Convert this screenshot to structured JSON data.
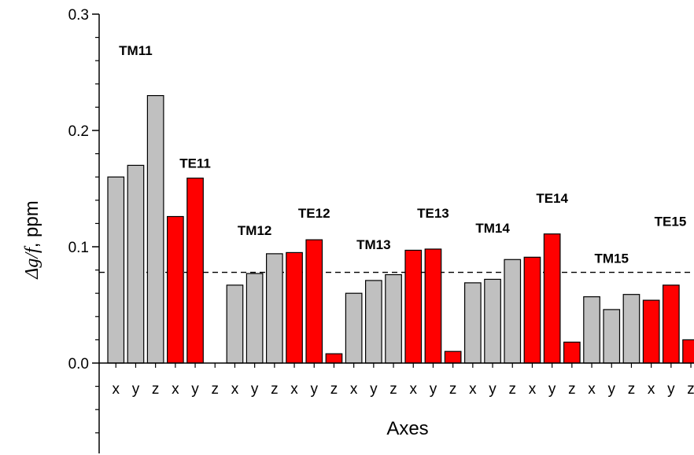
{
  "chart_data": {
    "type": "bar",
    "title": "",
    "xlabel": "Axes",
    "ylabel_main": "Δg/f",
    "ylabel_unit": ", ppm",
    "ylim": [
      -0.08,
      0.3
    ],
    "yticks": [
      "0.0",
      "0.1",
      "0.2",
      "0.3"
    ],
    "ytick_values": [
      0.0,
      0.1,
      0.2,
      0.3
    ],
    "reference_line": 0.078,
    "colors": {
      "TM": "#c0c0c0",
      "TE": "#ff0000",
      "reference": "#000000"
    },
    "groups": [
      {
        "label": "TM11",
        "mode": "TM",
        "categories": [
          "x",
          "y",
          "z"
        ],
        "values": [
          0.16,
          0.17,
          0.23
        ],
        "label_y": 0.265
      },
      {
        "label": "TE11",
        "mode": "TE",
        "categories": [
          "x",
          "y",
          "z"
        ],
        "values": [
          0.126,
          0.159,
          0.0
        ],
        "label_y": 0.168
      },
      {
        "label": "TM12",
        "mode": "TM",
        "categories": [
          "x",
          "y",
          "z"
        ],
        "values": [
          0.067,
          0.077,
          0.094
        ],
        "label_y": 0.11
      },
      {
        "label": "TE12",
        "mode": "TE",
        "categories": [
          "x",
          "y",
          "z"
        ],
        "values": [
          0.095,
          0.106,
          0.008
        ],
        "label_y": 0.125
      },
      {
        "label": "TM13",
        "mode": "TM",
        "categories": [
          "x",
          "y",
          "z"
        ],
        "values": [
          0.06,
          0.071,
          0.076
        ],
        "label_y": 0.098
      },
      {
        "label": "TE13",
        "mode": "TE",
        "categories": [
          "x",
          "y",
          "z"
        ],
        "values": [
          0.097,
          0.098,
          0.01
        ],
        "label_y": 0.125
      },
      {
        "label": "TM14",
        "mode": "TM",
        "categories": [
          "x",
          "y",
          "z"
        ],
        "values": [
          0.069,
          0.072,
          0.089
        ],
        "label_y": 0.112
      },
      {
        "label": "TE14",
        "mode": "TE",
        "categories": [
          "x",
          "y",
          "z"
        ],
        "values": [
          0.091,
          0.111,
          0.018
        ],
        "label_y": 0.138
      },
      {
        "label": "TM15",
        "mode": "TM",
        "categories": [
          "x",
          "y",
          "z"
        ],
        "values": [
          0.057,
          0.046,
          0.059
        ],
        "label_y": 0.086
      },
      {
        "label": "TE15",
        "mode": "TE",
        "categories": [
          "x",
          "y",
          "z"
        ],
        "values": [
          0.054,
          0.067,
          0.02
        ],
        "label_y": 0.118
      }
    ]
  }
}
